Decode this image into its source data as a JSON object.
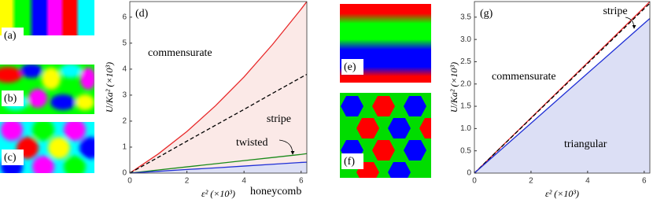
{
  "chart_data": [
    {
      "type": "line",
      "panel": "(d)",
      "x_label": "ε² (×10³)",
      "y_label": "U/Ka² (×10³)",
      "xlim": [
        0,
        6.2
      ],
      "ylim": [
        0,
        6.6
      ],
      "xticks": [
        0,
        2,
        4,
        6
      ],
      "yticks": [
        0,
        1,
        2,
        3,
        4,
        5,
        6
      ],
      "annotations": [
        "commensurate"
      ],
      "x": [
        0,
        1,
        2,
        3,
        4,
        5,
        6,
        6.2
      ],
      "series": [
        {
          "name": "stripe",
          "color": "#e8292a",
          "fill": "#fbe9e7",
          "values": [
            0,
            0.74,
            1.6,
            2.59,
            3.7,
            4.95,
            6.31,
            6.6
          ]
        },
        {
          "color": "#000000",
          "dash": true,
          "values": [
            0,
            0.61,
            1.23,
            1.84,
            2.45,
            3.07,
            3.68,
            3.8
          ]
        },
        {
          "name": "twisted",
          "color": "#1a8a1a",
          "values": [
            0,
            0.12,
            0.24,
            0.36,
            0.48,
            0.6,
            0.72,
            0.75
          ]
        },
        {
          "name": "honeycomb",
          "color": "#1f2fd6",
          "fill": "#dcdff5",
          "values": [
            0,
            0.07,
            0.14,
            0.2,
            0.27,
            0.34,
            0.41,
            0.42
          ]
        }
      ]
    },
    {
      "type": "line",
      "panel": "(g)",
      "x_label": "ε² (×10³)",
      "y_label": "U/Ka² (×10³)",
      "xlim": [
        0,
        6.2
      ],
      "ylim": [
        0,
        3.85
      ],
      "xticks": [
        0,
        2,
        4,
        6
      ],
      "yticks": [
        0,
        0.5,
        {
          "value": 1,
          "label": "1.0"
        },
        1.5,
        {
          "value": 2,
          "label": "2.0"
        },
        2.5,
        {
          "value": 3,
          "label": "3.0"
        },
        3.5
      ],
      "annotations": [
        "commensurate"
      ],
      "x": [
        0,
        2,
        4,
        6,
        6.2
      ],
      "series": [
        {
          "name": "stripe",
          "color": "#e8292a",
          "values": [
            0,
            1.24,
            2.48,
            3.72,
            3.85
          ]
        },
        {
          "color": "#000000",
          "dash": true,
          "values": [
            0,
            1.23,
            2.46,
            3.69,
            3.81
          ]
        },
        {
          "name": "triangular",
          "color": "#1f2fd6",
          "fill": "#dcdff5",
          "values": [
            0,
            1.12,
            2.24,
            3.36,
            3.47
          ]
        }
      ]
    }
  ],
  "images": {
    "labels": [
      "(a)",
      "(b)",
      "(c)",
      "(e)",
      "(f)"
    ]
  }
}
